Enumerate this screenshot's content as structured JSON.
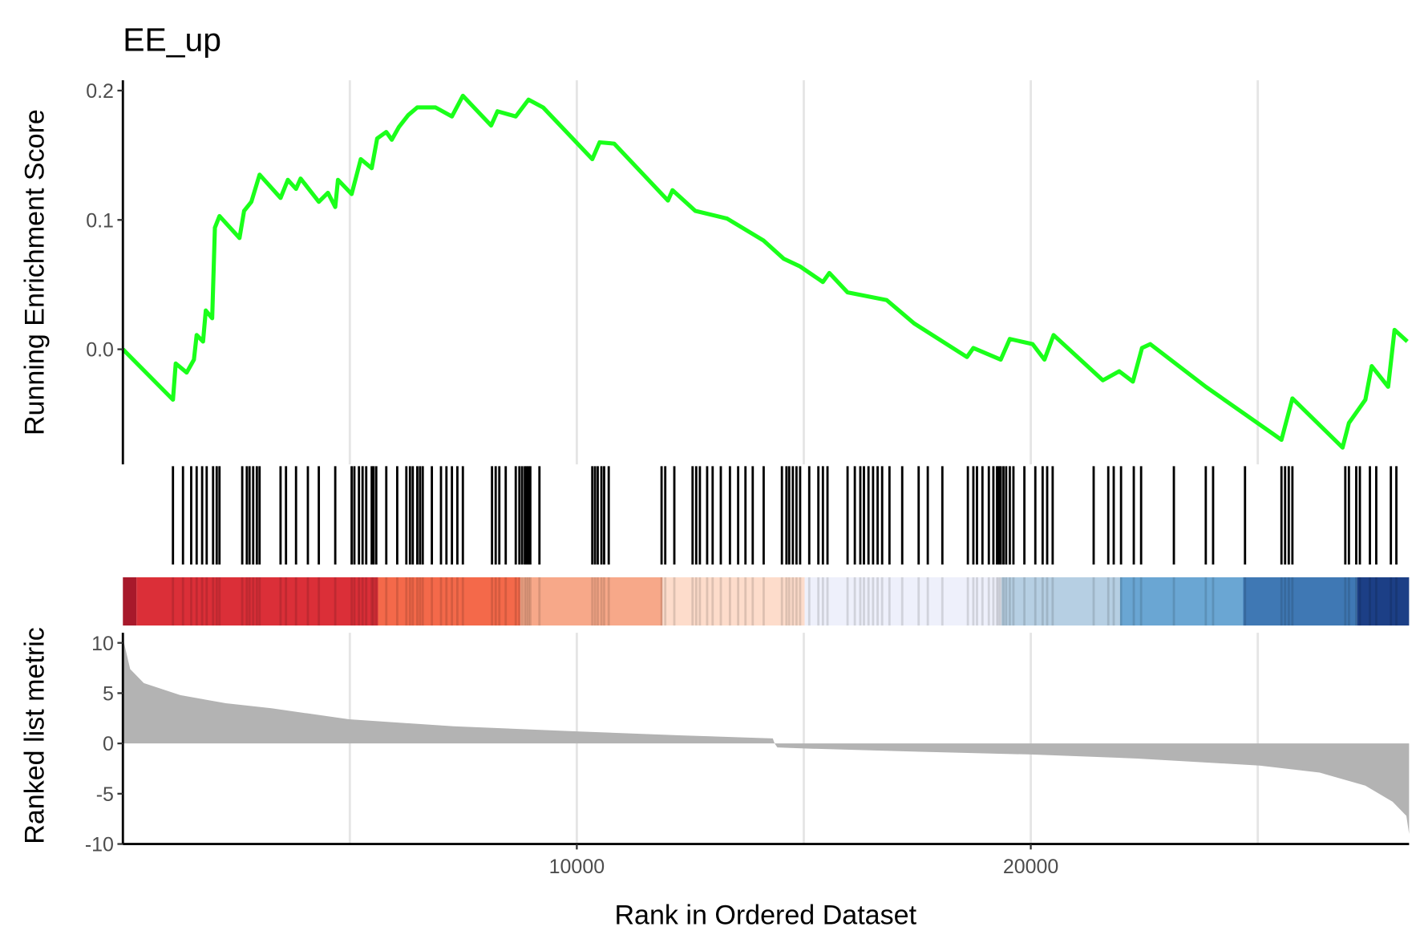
{
  "chart_data": {
    "type": "gsea",
    "title": "EE_up",
    "xlabel": "Rank in Ordered Dataset",
    "es_ylabel": "Running Enrichment Score",
    "metric_ylabel": "Ranked list metric",
    "xlim": [
      1,
      28333
    ],
    "xticks": [
      10000,
      20000
    ],
    "xgrid": [
      5000,
      10000,
      15000,
      20000,
      25000
    ],
    "es_ylim": [
      -0.089,
      0.208
    ],
    "es_yticks": [
      {
        "value": 0,
        "label": "0.0"
      },
      0.1,
      0.2
    ],
    "metric_ylim": [
      -10,
      11
    ],
    "metric_yticks": [
      -10,
      -5,
      0,
      5,
      10
    ],
    "es_color": "#1aff1a",
    "metric_color": "#b3b3b3",
    "hit_color": "#000000",
    "es": {
      "x": [
        1,
        1104,
        1165,
        1406,
        1566,
        1626,
        1767,
        1827,
        1968,
        2028,
        2129,
        2570,
        2671,
        2831,
        3012,
        3474,
        3635,
        3815,
        3916,
        4317,
        4518,
        4679,
        4739,
        5040,
        5241,
        5482,
        5602,
        5803,
        5924,
        6084,
        6285,
        6486,
        6887,
        7249,
        7490,
        8112,
        8253,
        8655,
        8936,
        9257,
        10341,
        10502,
        10823,
        12008,
        12108,
        12610,
        13313,
        14116,
        14558,
        14919,
        15421,
        15562,
        15964,
        16827,
        17430,
        18594,
        18735,
        19338,
        19538,
        20040,
        20301,
        20502,
        21587,
        21948,
        22249,
        22450,
        22631,
        23856,
        25522,
        25763,
        26868,
        27008,
        27370,
        27510,
        27872,
        28013,
        28294
      ],
      "values": [
        0,
        -0.039,
        -0.011,
        -0.018,
        -0.008,
        0.011,
        0.006,
        0.03,
        0.024,
        0.094,
        0.103,
        0.086,
        0.107,
        0.114,
        0.135,
        0.117,
        0.131,
        0.124,
        0.132,
        0.114,
        0.121,
        0.11,
        0.131,
        0.12,
        0.147,
        0.14,
        0.163,
        0.168,
        0.162,
        0.172,
        0.181,
        0.187,
        0.187,
        0.18,
        0.196,
        0.173,
        0.184,
        0.18,
        0.193,
        0.187,
        0.147,
        0.16,
        0.159,
        0.115,
        0.123,
        0.107,
        0.101,
        0.084,
        0.07,
        0.064,
        0.052,
        0.059,
        0.044,
        0.038,
        0.02,
        -0.006,
        0.001,
        -0.008,
        0.008,
        0.004,
        -0.008,
        0.011,
        -0.024,
        -0.017,
        -0.025,
        0.001,
        0.004,
        -0.029,
        -0.07,
        -0.038,
        -0.076,
        -0.057,
        -0.039,
        -0.013,
        -0.029,
        0.015,
        0.006
      ]
    },
    "hits": [
      1104,
      1325,
      1506,
      1626,
      1747,
      1847,
      1988,
      2068,
      2129,
      2630,
      2731,
      2791,
      2871,
      2952,
      3012,
      3474,
      3594,
      3815,
      4076,
      4317,
      4679,
      5040,
      5100,
      5201,
      5281,
      5361,
      5482,
      5522,
      5582,
      5803,
      6044,
      6245,
      6325,
      6386,
      6486,
      6546,
      6606,
      6807,
      7008,
      7128,
      7249,
      7369,
      7490,
      8132,
      8213,
      8293,
      8434,
      8655,
      8735,
      8795,
      8855,
      8896,
      8936,
      8976,
      9177,
      10341,
      10401,
      10461,
      10542,
      10602,
      10703,
      11867,
      11948,
      12148,
      12550,
      12630,
      12711,
      12871,
      12992,
      13172,
      13373,
      13554,
      13715,
      13875,
      14116,
      14518,
      14618,
      14678,
      14759,
      14839,
      14919,
      15120,
      15321,
      15421,
      15522,
      15964,
      16124,
      16245,
      16325,
      16425,
      16526,
      16626,
      16726,
      16887,
      17168,
      17530,
      17731,
      18052,
      18614,
      18735,
      18815,
      18935,
      19076,
      19176,
      19257,
      19297,
      19338,
      19398,
      19458,
      19538,
      19618,
      19859,
      20100,
      20261,
      20361,
      20482,
      21385,
      21707,
      21827,
      21988,
      22269,
      22430,
      23152,
      23855,
      24016,
      24719,
      25522,
      25602,
      25683,
      25763,
      26928,
      27008,
      27169,
      27249,
      27470,
      27610,
      27932,
      28053
    ],
    "color_bar": [
      {
        "start": 1,
        "end": 302,
        "color": "#a8192b"
      },
      {
        "start": 302,
        "end": 5622,
        "color": "#db2f38"
      },
      {
        "start": 5622,
        "end": 8755,
        "color": "#f4694a"
      },
      {
        "start": 8755,
        "end": 11887,
        "color": "#f7a889"
      },
      {
        "start": 11887,
        "end": 15019,
        "color": "#fddccb"
      },
      {
        "start": 15019,
        "end": 19357,
        "color": "#eef0fb"
      },
      {
        "start": 19357,
        "end": 21968,
        "color": "#b6cfe3"
      },
      {
        "start": 21968,
        "end": 24679,
        "color": "#6aa6d3"
      },
      {
        "start": 24679,
        "end": 27189,
        "color": "#3f78b4"
      },
      {
        "start": 27189,
        "end": 28333,
        "color": "#1c3f86"
      }
    ],
    "metric": {
      "x": [
        1,
        161,
        462,
        1265,
        2269,
        3273,
        4980,
        7289,
        10000,
        12309,
        14317,
        14357,
        14418,
        15000,
        17329,
        20000,
        22349,
        25040,
        26365,
        27369,
        27971,
        28273,
        28333
      ],
      "values": [
        10.5,
        7.4,
        6,
        4.8,
        4,
        3.5,
        2.4,
        1.7,
        1.2,
        0.8,
        0.5,
        0,
        -0.4,
        -0.5,
        -0.8,
        -1.1,
        -1.5,
        -2.2,
        -2.9,
        -4.2,
        -5.8,
        -7.2,
        -9
      ]
    }
  }
}
